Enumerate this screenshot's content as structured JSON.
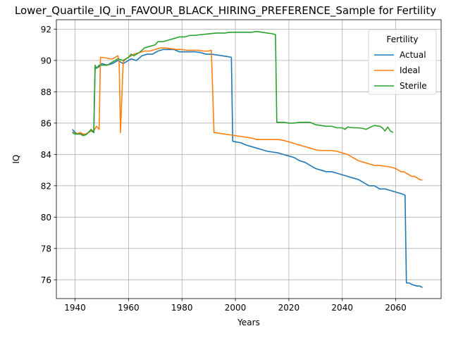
{
  "chart_data": {
    "type": "line",
    "title": "Lower_Quartile_IQ_in_FAVOUR_BLACK_HIRING_PREFERENCE_Sample for Fertility",
    "xlabel": "Years",
    "ylabel": "IQ",
    "xlim": [
      1933,
      2077
    ],
    "ylim": [
      74.8,
      92.6
    ],
    "x_ticks": [
      1940,
      1960,
      1980,
      2000,
      2020,
      2040,
      2060
    ],
    "y_ticks": [
      76,
      78,
      80,
      82,
      84,
      86,
      88,
      90,
      92
    ],
    "grid": true,
    "legend": {
      "title": "Fertility",
      "placement": "top-right"
    },
    "series": [
      {
        "name": "Actual",
        "color": "#1f77b4",
        "points": [
          [
            1939,
            85.6
          ],
          [
            1940,
            85.4
          ],
          [
            1941,
            85.3
          ],
          [
            1942,
            85.4
          ],
          [
            1943,
            85.25
          ],
          [
            1944,
            85.3
          ],
          [
            1945,
            85.4
          ],
          [
            1946,
            85.5
          ],
          [
            1947,
            85.4
          ],
          [
            1947.5,
            89.6
          ],
          [
            1948,
            89.5
          ],
          [
            1949,
            89.6
          ],
          [
            1950,
            89.8
          ],
          [
            1952,
            89.7
          ],
          [
            1954,
            89.8
          ],
          [
            1956,
            90.0
          ],
          [
            1958,
            89.8
          ],
          [
            1960,
            90.0
          ],
          [
            1961,
            90.1
          ],
          [
            1963,
            90.0
          ],
          [
            1965,
            90.3
          ],
          [
            1967,
            90.4
          ],
          [
            1969,
            90.4
          ],
          [
            1971,
            90.6
          ],
          [
            1973,
            90.7
          ],
          [
            1975,
            90.7
          ],
          [
            1977,
            90.7
          ],
          [
            1979,
            90.55
          ],
          [
            1981,
            90.55
          ],
          [
            1983,
            90.55
          ],
          [
            1985,
            90.55
          ],
          [
            1987,
            90.5
          ],
          [
            1989,
            90.4
          ],
          [
            1991,
            90.4
          ],
          [
            1993,
            90.35
          ],
          [
            1995,
            90.3
          ],
          [
            1997,
            90.25
          ],
          [
            1998.5,
            90.2
          ],
          [
            1999,
            84.85
          ],
          [
            2000,
            84.8
          ],
          [
            2002,
            84.75
          ],
          [
            2004,
            84.6
          ],
          [
            2006,
            84.5
          ],
          [
            2008,
            84.4
          ],
          [
            2010,
            84.3
          ],
          [
            2012,
            84.2
          ],
          [
            2014,
            84.15
          ],
          [
            2016,
            84.1
          ],
          [
            2018,
            84.0
          ],
          [
            2020,
            83.9
          ],
          [
            2022,
            83.8
          ],
          [
            2024,
            83.6
          ],
          [
            2026,
            83.5
          ],
          [
            2028,
            83.3
          ],
          [
            2030,
            83.1
          ],
          [
            2032,
            83.0
          ],
          [
            2034,
            82.9
          ],
          [
            2036,
            82.9
          ],
          [
            2038,
            82.8
          ],
          [
            2040,
            82.7
          ],
          [
            2042,
            82.6
          ],
          [
            2044,
            82.5
          ],
          [
            2046,
            82.4
          ],
          [
            2048,
            82.2
          ],
          [
            2050,
            82.0
          ],
          [
            2052,
            82.0
          ],
          [
            2054,
            81.8
          ],
          [
            2056,
            81.8
          ],
          [
            2058,
            81.7
          ],
          [
            2060,
            81.6
          ],
          [
            2062,
            81.5
          ],
          [
            2063.5,
            81.4
          ],
          [
            2064,
            75.8
          ],
          [
            2065,
            75.8
          ],
          [
            2066,
            75.7
          ],
          [
            2068,
            75.6
          ],
          [
            2069,
            75.6
          ],
          [
            2070,
            75.5
          ]
        ]
      },
      {
        "name": "Ideal",
        "color": "#ff7f0e",
        "points": [
          [
            1939,
            85.45
          ],
          [
            1940,
            85.3
          ],
          [
            1941,
            85.35
          ],
          [
            1942,
            85.4
          ],
          [
            1943,
            85.3
          ],
          [
            1944,
            85.3
          ],
          [
            1945,
            85.4
          ],
          [
            1946,
            85.5
          ],
          [
            1947,
            85.5
          ],
          [
            1948,
            85.8
          ],
          [
            1949,
            85.6
          ],
          [
            1949.5,
            90.2
          ],
          [
            1950,
            90.2
          ],
          [
            1952,
            90.15
          ],
          [
            1953,
            90.1
          ],
          [
            1954,
            90.1
          ],
          [
            1955,
            90.2
          ],
          [
            1956,
            90.3
          ],
          [
            1956.5,
            89.9
          ],
          [
            1957,
            85.4
          ],
          [
            1958,
            89.9
          ],
          [
            1959,
            90.1
          ],
          [
            1960,
            90.2
          ],
          [
            1962,
            90.4
          ],
          [
            1964,
            90.5
          ],
          [
            1966,
            90.6
          ],
          [
            1968,
            90.6
          ],
          [
            1970,
            90.7
          ],
          [
            1972,
            90.8
          ],
          [
            1974,
            90.8
          ],
          [
            1976,
            90.75
          ],
          [
            1978,
            90.7
          ],
          [
            1980,
            90.7
          ],
          [
            1982,
            90.65
          ],
          [
            1984,
            90.65
          ],
          [
            1986,
            90.65
          ],
          [
            1988,
            90.6
          ],
          [
            1990,
            90.6
          ],
          [
            1991,
            90.65
          ],
          [
            1992,
            85.4
          ],
          [
            1994,
            85.35
          ],
          [
            1996,
            85.3
          ],
          [
            1998,
            85.25
          ],
          [
            2000,
            85.2
          ],
          [
            2002,
            85.15
          ],
          [
            2004,
            85.1
          ],
          [
            2006,
            85.05
          ],
          [
            2008,
            84.95
          ],
          [
            2010,
            84.95
          ],
          [
            2012,
            84.95
          ],
          [
            2014,
            84.95
          ],
          [
            2016,
            84.95
          ],
          [
            2018,
            84.9
          ],
          [
            2020,
            84.8
          ],
          [
            2022,
            84.7
          ],
          [
            2024,
            84.6
          ],
          [
            2026,
            84.5
          ],
          [
            2028,
            84.4
          ],
          [
            2030,
            84.3
          ],
          [
            2032,
            84.25
          ],
          [
            2034,
            84.25
          ],
          [
            2036,
            84.25
          ],
          [
            2038,
            84.2
          ],
          [
            2040,
            84.1
          ],
          [
            2042,
            84.0
          ],
          [
            2044,
            83.8
          ],
          [
            2046,
            83.6
          ],
          [
            2048,
            83.5
          ],
          [
            2050,
            83.4
          ],
          [
            2052,
            83.3
          ],
          [
            2054,
            83.3
          ],
          [
            2056,
            83.25
          ],
          [
            2058,
            83.2
          ],
          [
            2060,
            83.1
          ],
          [
            2061,
            83.0
          ],
          [
            2062,
            82.9
          ],
          [
            2063,
            82.9
          ],
          [
            2064,
            82.8
          ],
          [
            2065,
            82.7
          ],
          [
            2066,
            82.6
          ],
          [
            2067,
            82.6
          ],
          [
            2068,
            82.5
          ],
          [
            2069,
            82.4
          ],
          [
            2070,
            82.35
          ]
        ]
      },
      {
        "name": "Sterile",
        "color": "#2ca02c",
        "points": [
          [
            1939,
            85.4
          ],
          [
            1940,
            85.3
          ],
          [
            1941,
            85.3
          ],
          [
            1942,
            85.3
          ],
          [
            1943,
            85.2
          ],
          [
            1944,
            85.25
          ],
          [
            1945,
            85.4
          ],
          [
            1946,
            85.6
          ],
          [
            1947,
            85.4
          ],
          [
            1947.5,
            89.7
          ],
          [
            1948,
            89.5
          ],
          [
            1949,
            89.7
          ],
          [
            1950,
            89.7
          ],
          [
            1952,
            89.7
          ],
          [
            1954,
            89.9
          ],
          [
            1956,
            90.1
          ],
          [
            1958,
            90.0
          ],
          [
            1960,
            90.2
          ],
          [
            1961,
            90.4
          ],
          [
            1962,
            90.3
          ],
          [
            1964,
            90.5
          ],
          [
            1966,
            90.8
          ],
          [
            1968,
            90.9
          ],
          [
            1970,
            91.0
          ],
          [
            1971,
            91.2
          ],
          [
            1973,
            91.2
          ],
          [
            1975,
            91.3
          ],
          [
            1977,
            91.4
          ],
          [
            1979,
            91.5
          ],
          [
            1981,
            91.5
          ],
          [
            1983,
            91.6
          ],
          [
            1985,
            91.6
          ],
          [
            1987,
            91.65
          ],
          [
            1990,
            91.7
          ],
          [
            1993,
            91.75
          ],
          [
            1996,
            91.75
          ],
          [
            1998,
            91.8
          ],
          [
            2000,
            91.8
          ],
          [
            2002,
            91.8
          ],
          [
            2004,
            91.8
          ],
          [
            2006,
            91.8
          ],
          [
            2008,
            91.85
          ],
          [
            2010,
            91.8
          ],
          [
            2012,
            91.75
          ],
          [
            2014,
            91.7
          ],
          [
            2015,
            91.65
          ],
          [
            2015.5,
            86.05
          ],
          [
            2016,
            86.05
          ],
          [
            2018,
            86.05
          ],
          [
            2020,
            86.0
          ],
          [
            2022,
            86.0
          ],
          [
            2024,
            86.05
          ],
          [
            2026,
            86.05
          ],
          [
            2028,
            86.05
          ],
          [
            2030,
            85.9
          ],
          [
            2032,
            85.85
          ],
          [
            2034,
            85.8
          ],
          [
            2036,
            85.8
          ],
          [
            2038,
            85.7
          ],
          [
            2040,
            85.7
          ],
          [
            2041,
            85.6
          ],
          [
            2042,
            85.75
          ],
          [
            2044,
            85.7
          ],
          [
            2046,
            85.7
          ],
          [
            2048,
            85.65
          ],
          [
            2049,
            85.6
          ],
          [
            2050,
            85.7
          ],
          [
            2052,
            85.85
          ],
          [
            2054,
            85.8
          ],
          [
            2055,
            85.7
          ],
          [
            2056,
            85.5
          ],
          [
            2057,
            85.75
          ],
          [
            2058,
            85.5
          ],
          [
            2059,
            85.4
          ]
        ]
      }
    ]
  }
}
